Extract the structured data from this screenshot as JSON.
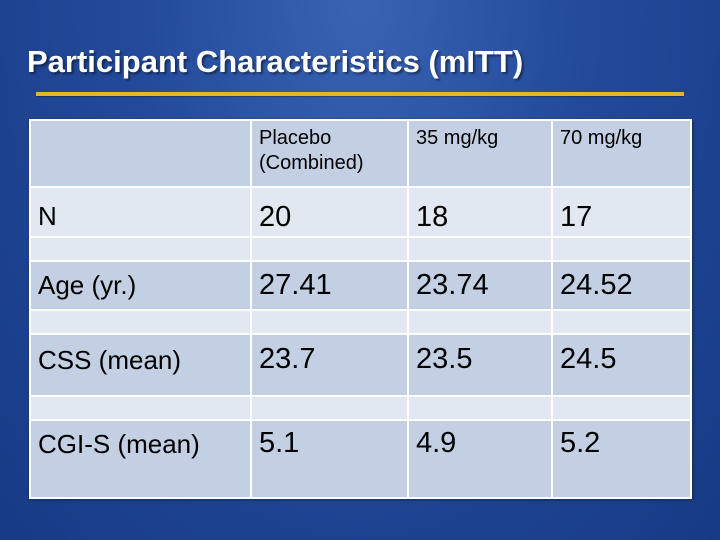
{
  "slide": {
    "title": "Participant Characteristics (mITT)"
  },
  "table": {
    "header": {
      "corner": "",
      "columns": [
        "Placebo (Combined)",
        "35 mg/kg",
        "70 mg/kg"
      ]
    },
    "rows": [
      {
        "label": "N",
        "values": [
          "20",
          "18",
          "17"
        ]
      },
      {
        "label": "Age (yr.)",
        "values": [
          "27.41",
          "23.74",
          "24.52"
        ]
      },
      {
        "label": "CSS (mean)",
        "values": [
          "23.7",
          "23.5",
          "24.5"
        ]
      },
      {
        "label": "CGI-S (mean)",
        "values": [
          "5.1",
          "4.9",
          "5.2"
        ]
      }
    ]
  },
  "colors": {
    "background": "#234a9a",
    "accent_rule": "#e3b62b",
    "cell_dark": "#c3cfe2",
    "cell_light": "#e1e8f1"
  }
}
